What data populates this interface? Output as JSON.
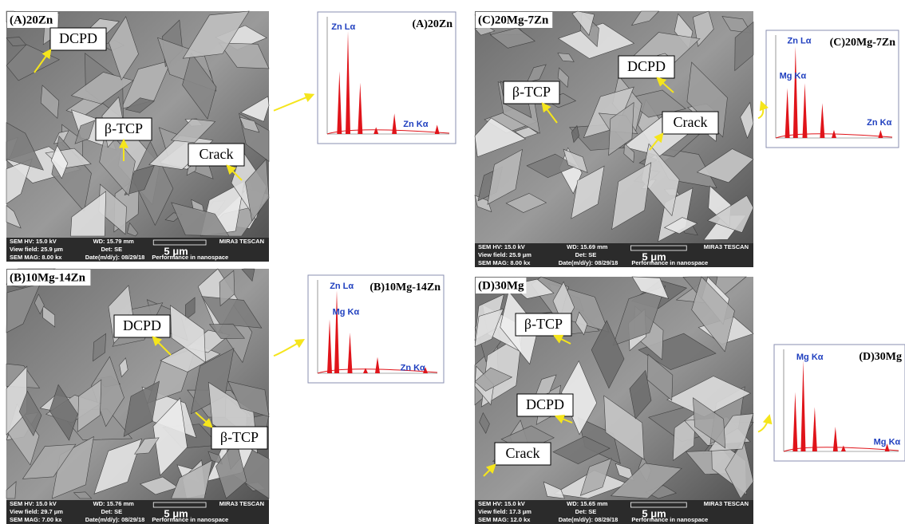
{
  "panels": [
    {
      "label": "(A)20Zn",
      "sem": {
        "hv": "SEM HV: 15.0 kV",
        "wd": "WD: 15.79 mm",
        "brand": "MIRA3 TESCAN",
        "field": "View field: 25.9 μm",
        "det": "Det: SE",
        "scale": "5 μm",
        "mag": "SEM MAG: 8.00 kx",
        "date": "Date(m/d/y): 08/29/18",
        "slogan": "Performance in nanospace"
      },
      "annotations": [
        "DCPD",
        "β-TCP",
        "Crack"
      ],
      "eds": {
        "title": "(A)20Zn",
        "labels": [
          "Zn Lα",
          "Zn Kα"
        ]
      }
    },
    {
      "label": "(B)10Mg-14Zn",
      "sem": {
        "hv": "SEM HV: 15.0 kV",
        "wd": "WD: 15.76 mm",
        "brand": "MIRA3 TESCAN",
        "field": "View field: 29.7 μm",
        "det": "Det: SE",
        "scale": "5 μm",
        "mag": "SEM MAG: 7.00 kx",
        "date": "Date(m/d/y): 08/29/18",
        "slogan": "Performance in nanospace"
      },
      "annotations": [
        "DCPD",
        "β-TCP"
      ],
      "eds": {
        "title": "(B)10Mg-14Zn",
        "labels": [
          "Zn Lα",
          "Mg Kα",
          "Zn Kα"
        ]
      }
    },
    {
      "label": "(C)20Mg-7Zn",
      "sem": {
        "hv": "SEM HV: 15.0 kV",
        "wd": "WD: 15.69 mm",
        "brand": "MIRA3 TESCAN",
        "field": "View field: 25.9 μm",
        "det": "Det: SE",
        "scale": "5 μm",
        "mag": "SEM MAG: 8.00 kx",
        "date": "Date(m/d/y): 08/29/18",
        "slogan": "Performance in nanospace"
      },
      "annotations": [
        "DCPD",
        "β-TCP",
        "Crack"
      ],
      "eds": {
        "title": "(C)20Mg-7Zn",
        "labels": [
          "Zn Lα",
          "Mg Kα",
          "Zn Kα"
        ]
      }
    },
    {
      "label": "(D)30Mg",
      "sem": {
        "hv": "SEM HV: 15.0 kV",
        "wd": "WD: 15.65 mm",
        "brand": "MIRA3 TESCAN",
        "field": "View field: 17.3 μm",
        "det": "Det: SE",
        "scale": "5 μm",
        "mag": "SEM MAG: 12.0 kx",
        "date": "Date(m/d/y): 08/29/18",
        "slogan": "Performance in nanospace"
      },
      "annotations": [
        "β-TCP",
        "DCPD",
        "Crack"
      ],
      "eds": {
        "title": "(D)30Mg",
        "labels": [
          "Mg Kα",
          "Mg Kα"
        ]
      }
    }
  ]
}
